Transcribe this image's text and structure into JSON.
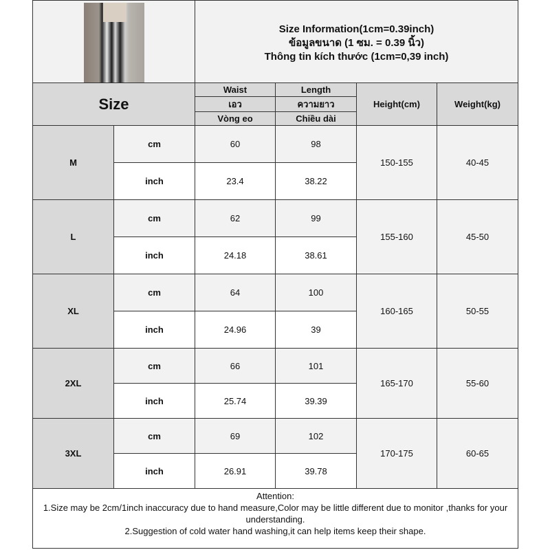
{
  "title": {
    "line1": "Size Information(1cm=0.39inch)",
    "line2": "ข้อมูลขนาด (1 ซม. = 0.39 นิ้ว)",
    "line3": "Thông tin kích thước (1cm=0,39 inch)"
  },
  "header": {
    "size": "Size",
    "waist": [
      "Waist",
      "เอว",
      "Vòng eo"
    ],
    "length": [
      "Length",
      "ความยาว",
      "Chiều dài"
    ],
    "height": "Height(cm)",
    "weight": "Weight(kg)"
  },
  "rows": [
    {
      "size": "M",
      "cm_label": "cm",
      "inch_label": "inch",
      "waist_cm": "60",
      "length_cm": "98",
      "waist_inch": "23.4",
      "length_inch": "38.22",
      "height": "150-155",
      "weight": "40-45"
    },
    {
      "size": "L",
      "cm_label": "cm",
      "inch_label": "inch",
      "waist_cm": "62",
      "length_cm": "99",
      "waist_inch": "24.18",
      "length_inch": "38.61",
      "height": "155-160",
      "weight": "45-50"
    },
    {
      "size": "XL",
      "cm_label": "cm",
      "inch_label": "inch",
      "waist_cm": "64",
      "length_cm": "100",
      "waist_inch": "24.96",
      "length_inch": "39",
      "height": "160-165",
      "weight": "50-55"
    },
    {
      "size": "2XL",
      "cm_label": "cm",
      "inch_label": "inch",
      "waist_cm": "66",
      "length_cm": "101",
      "waist_inch": "25.74",
      "length_inch": "39.39",
      "height": "165-170",
      "weight": "55-60"
    },
    {
      "size": "3XL",
      "cm_label": "cm",
      "inch_label": "inch",
      "waist_cm": "69",
      "length_cm": "102",
      "waist_inch": "26.91",
      "length_inch": "39.78",
      "height": "170-175",
      "weight": "60-65"
    }
  ],
  "notes": {
    "heading": "Attention:",
    "line1": "1.Size may be 2cm/1inch inaccuracy due to hand measure,Color may be little different due to monitor ,thanks for your understanding.",
    "line2": "2.Suggestion of cold water hand washing,it can help items keep their shape."
  }
}
